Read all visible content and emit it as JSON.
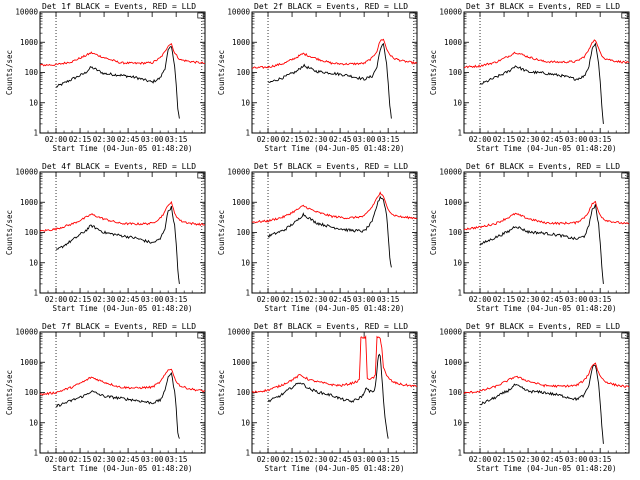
{
  "chart_data": {
    "type": "line",
    "xlabel": "Start Time (04-Jun-05 01:48:20)",
    "ylabel": "Counts/sec",
    "yscale": "log",
    "ylim": [
      1,
      10000
    ],
    "y_tick_labels": [
      "1",
      "10",
      "100",
      "1000",
      "10000"
    ],
    "x_tick_labels": [
      "02:00",
      "02:15",
      "02:30",
      "02:45",
      "03:00",
      "03:15"
    ],
    "xlim_minutes": [
      -10,
      93
    ],
    "vlines_minutes": [
      0,
      91
    ],
    "colors": {
      "events": "#000000",
      "lld": "#ff0000"
    },
    "panels": [
      {
        "title": "Det 1f BLACK = Events, RED = LLD",
        "series": [
          {
            "name": "Events",
            "color": "#000000",
            "x": [
              0,
              10,
              18,
              22,
              30,
              40,
              50,
              60,
              65,
              68,
              70,
              72,
              74,
              75,
              76,
              77
            ],
            "y": [
              33,
              60,
              95,
              150,
              92,
              82,
              68,
              48,
              65,
              140,
              540,
              700,
              180,
              40,
              6,
              3
            ]
          },
          {
            "name": "LLD",
            "color": "#ff0000",
            "x": [
              -10,
              0,
              10,
              18,
              22,
              30,
              40,
              50,
              60,
              65,
              68,
              70,
              72,
              74,
              76,
              78,
              84,
              93
            ],
            "y": [
              175,
              180,
              230,
              350,
              450,
              310,
              210,
              200,
              210,
              300,
              480,
              800,
              900,
              450,
              320,
              260,
              230,
              200
            ]
          }
        ]
      },
      {
        "title": "Det 2f BLACK = Events, RED = LLD",
        "series": [
          {
            "name": "Events",
            "color": "#000000",
            "x": [
              0,
              10,
              18,
              22,
              30,
              40,
              50,
              60,
              65,
              68,
              70,
              72,
              74,
              75,
              76,
              77
            ],
            "y": [
              45,
              70,
              110,
              170,
              110,
              95,
              80,
              60,
              75,
              150,
              600,
              850,
              200,
              45,
              8,
              3
            ]
          },
          {
            "name": "LLD",
            "color": "#ff0000",
            "x": [
              -10,
              0,
              10,
              18,
              22,
              30,
              40,
              50,
              60,
              65,
              68,
              70,
              72,
              74,
              76,
              78,
              84,
              93
            ],
            "y": [
              140,
              150,
              200,
              320,
              420,
              290,
              200,
              190,
              200,
              300,
              520,
              1100,
              1300,
              600,
              400,
              300,
              240,
              200
            ]
          }
        ]
      },
      {
        "title": "Det 3f BLACK = Events, RED = LLD",
        "series": [
          {
            "name": "Events",
            "color": "#000000",
            "x": [
              0,
              10,
              18,
              22,
              30,
              40,
              50,
              60,
              65,
              68,
              70,
              72,
              74,
              75,
              76,
              77
            ],
            "y": [
              40,
              70,
              110,
              165,
              105,
              95,
              80,
              60,
              75,
              160,
              650,
              900,
              210,
              50,
              8,
              2
            ]
          },
          {
            "name": "LLD",
            "color": "#ff0000",
            "x": [
              -10,
              0,
              10,
              18,
              22,
              30,
              40,
              50,
              60,
              65,
              68,
              70,
              72,
              74,
              76,
              78,
              84,
              93
            ],
            "y": [
              150,
              165,
              220,
              350,
              470,
              330,
              230,
              220,
              230,
              330,
              560,
              1050,
              1200,
              600,
              380,
              290,
              240,
              210
            ]
          }
        ]
      },
      {
        "title": "Det 4f BLACK = Events, RED = LLD",
        "series": [
          {
            "name": "Events",
            "color": "#000000",
            "x": [
              0,
              10,
              18,
              22,
              30,
              40,
              50,
              60,
              65,
              68,
              70,
              72,
              74,
              75,
              76,
              77
            ],
            "y": [
              25,
              55,
              110,
              170,
              100,
              80,
              65,
              45,
              60,
              140,
              520,
              680,
              170,
              40,
              6,
              2
            ]
          },
          {
            "name": "LLD",
            "color": "#ff0000",
            "x": [
              -10,
              0,
              10,
              18,
              22,
              30,
              40,
              50,
              60,
              65,
              68,
              70,
              72,
              74,
              76,
              78,
              84,
              93
            ],
            "y": [
              110,
              130,
              190,
              300,
              400,
              280,
              200,
              190,
              200,
              300,
              480,
              850,
              950,
              450,
              300,
              240,
              200,
              180
            ]
          }
        ]
      },
      {
        "title": "Det 5f BLACK = Events, RED = LLD",
        "series": [
          {
            "name": "Events",
            "color": "#000000",
            "x": [
              0,
              10,
              18,
              22,
              30,
              40,
              50,
              60,
              65,
              68,
              70,
              72,
              74,
              75,
              76,
              77
            ],
            "y": [
              75,
              120,
              240,
              400,
              210,
              150,
              120,
              110,
              220,
              800,
              1500,
              1250,
              400,
              80,
              15,
              7
            ]
          },
          {
            "name": "LLD",
            "color": "#ff0000",
            "x": [
              -10,
              0,
              10,
              18,
              22,
              30,
              40,
              50,
              60,
              65,
              68,
              70,
              72,
              74,
              76,
              78,
              84,
              93
            ],
            "y": [
              220,
              240,
              330,
              560,
              760,
              480,
              340,
              300,
              340,
              700,
              1400,
              2000,
              1500,
              800,
              500,
              380,
              320,
              300
            ]
          }
        ]
      },
      {
        "title": "Det 6f BLACK = Events, RED = LLD",
        "series": [
          {
            "name": "Events",
            "color": "#000000",
            "x": [
              0,
              10,
              18,
              22,
              30,
              40,
              50,
              60,
              65,
              68,
              70,
              72,
              74,
              75,
              76,
              77
            ],
            "y": [
              40,
              70,
              110,
              165,
              105,
              95,
              80,
              60,
              75,
              160,
              600,
              780,
              190,
              45,
              7,
              2
            ]
          },
          {
            "name": "LLD",
            "color": "#ff0000",
            "x": [
              -10,
              0,
              10,
              18,
              22,
              30,
              40,
              50,
              60,
              65,
              68,
              70,
              72,
              74,
              76,
              78,
              84,
              93
            ],
            "y": [
              130,
              150,
              200,
              320,
              420,
              290,
              210,
              200,
              210,
              310,
              500,
              900,
              1000,
              480,
              330,
              260,
              220,
              190
            ]
          }
        ]
      },
      {
        "title": "Det 7f BLACK = Events, RED = LLD",
        "series": [
          {
            "name": "Events",
            "color": "#000000",
            "x": [
              0,
              10,
              18,
              22,
              30,
              40,
              50,
              60,
              65,
              68,
              70,
              72,
              74,
              75,
              76,
              77
            ],
            "y": [
              35,
              55,
              80,
              110,
              75,
              65,
              55,
              45,
              55,
              110,
              350,
              430,
              110,
              30,
              5,
              3
            ]
          },
          {
            "name": "LLD",
            "color": "#ff0000",
            "x": [
              -10,
              0,
              10,
              18,
              22,
              30,
              40,
              50,
              60,
              65,
              68,
              70,
              72,
              74,
              76,
              78,
              84,
              93
            ],
            "y": [
              85,
              100,
              150,
              240,
              320,
              220,
              150,
              140,
              150,
              220,
              380,
              560,
              620,
              300,
              200,
              160,
              130,
              110
            ]
          }
        ]
      },
      {
        "title": "Det 8f BLACK = Events, RED = LLD",
        "series": [
          {
            "name": "Events",
            "color": "#000000",
            "x": [
              0,
              8,
              15,
              20,
              26,
              32,
              40,
              46,
              52,
              56,
              59,
              60,
              61,
              62,
              64,
              66,
              67,
              68,
              69,
              70,
              71,
              72,
              73,
              74,
              75
            ],
            "y": [
              50,
              80,
              150,
              220,
              130,
              100,
              80,
              60,
              50,
              60,
              80,
              90,
              150,
              120,
              110,
              100,
              150,
              600,
              1800,
              1700,
              350,
              60,
              15,
              6,
              3
            ]
          },
          {
            "name": "LLD",
            "color": "#ff0000",
            "x": [
              -10,
              0,
              8,
              15,
              20,
              26,
              32,
              40,
              46,
              52,
              57,
              58,
              59,
              60,
              61,
              62,
              64,
              66,
              67,
              68,
              69,
              70,
              71,
              72,
              74,
              78,
              84,
              93
            ],
            "y": [
              100,
              120,
              170,
              260,
              380,
              260,
              220,
              180,
              170,
              200,
              250,
              6500,
              6500,
              6500,
              6500,
              300,
              280,
              300,
              400,
              6500,
              6500,
              6500,
              3000,
              700,
              350,
              220,
              180,
              160
            ]
          }
        ]
      },
      {
        "title": "Det 9f BLACK = Events, RED = LLD",
        "series": [
          {
            "name": "Events",
            "color": "#000000",
            "x": [
              0,
              10,
              18,
              22,
              30,
              40,
              50,
              60,
              65,
              68,
              70,
              72,
              74,
              75,
              76,
              77
            ],
            "y": [
              40,
              70,
              120,
              180,
              110,
              100,
              80,
              60,
              80,
              170,
              650,
              850,
              200,
              45,
              8,
              2
            ]
          },
          {
            "name": "LLD",
            "color": "#ff0000",
            "x": [
              -10,
              0,
              10,
              18,
              22,
              30,
              40,
              50,
              60,
              65,
              68,
              70,
              72,
              74,
              76,
              78,
              84,
              93
            ],
            "y": [
              95,
              110,
              160,
              260,
              340,
              240,
              170,
              160,
              170,
              250,
              430,
              800,
              950,
              450,
              300,
              230,
              180,
              150
            ]
          }
        ]
      }
    ]
  }
}
